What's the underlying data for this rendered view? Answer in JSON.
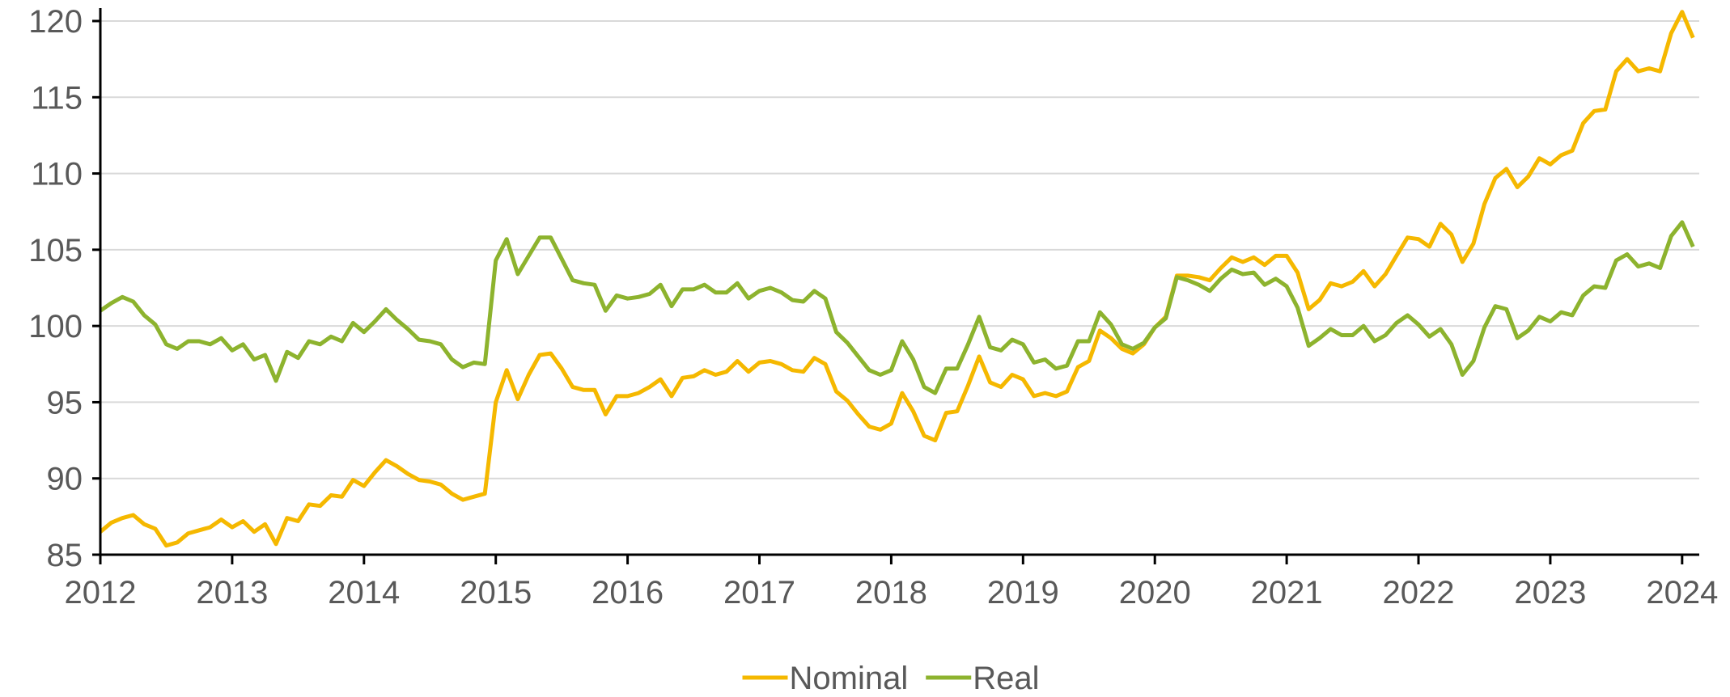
{
  "chart_data": {
    "type": "line",
    "x": [
      2012,
      2012.083,
      2012.167,
      2012.25,
      2012.333,
      2012.417,
      2012.5,
      2012.583,
      2012.667,
      2012.75,
      2012.833,
      2012.917,
      2013,
      2013.083,
      2013.167,
      2013.25,
      2013.333,
      2013.417,
      2013.5,
      2013.583,
      2013.667,
      2013.75,
      2013.833,
      2013.917,
      2014,
      2014.083,
      2014.167,
      2014.25,
      2014.333,
      2014.417,
      2014.5,
      2014.583,
      2014.667,
      2014.75,
      2014.833,
      2014.917,
      2015,
      2015.083,
      2015.167,
      2015.25,
      2015.333,
      2015.417,
      2015.5,
      2015.583,
      2015.667,
      2015.75,
      2015.833,
      2015.917,
      2016,
      2016.083,
      2016.167,
      2016.25,
      2016.333,
      2016.417,
      2016.5,
      2016.583,
      2016.667,
      2016.75,
      2016.833,
      2016.917,
      2017,
      2017.083,
      2017.167,
      2017.25,
      2017.333,
      2017.417,
      2017.5,
      2017.583,
      2017.667,
      2017.75,
      2017.833,
      2017.917,
      2018,
      2018.083,
      2018.167,
      2018.25,
      2018.333,
      2018.417,
      2018.5,
      2018.583,
      2018.667,
      2018.75,
      2018.833,
      2018.917,
      2019,
      2019.083,
      2019.167,
      2019.25,
      2019.333,
      2019.417,
      2019.5,
      2019.583,
      2019.667,
      2019.75,
      2019.833,
      2019.917,
      2020,
      2020.083,
      2020.167,
      2020.25,
      2020.333,
      2020.417,
      2020.5,
      2020.583,
      2020.667,
      2020.75,
      2020.833,
      2020.917,
      2021,
      2021.083,
      2021.167,
      2021.25,
      2021.333,
      2021.417,
      2021.5,
      2021.583,
      2021.667,
      2021.75,
      2021.833,
      2021.917,
      2022,
      2022.083,
      2022.167,
      2022.25,
      2022.333,
      2022.417,
      2022.5,
      2022.583,
      2022.667,
      2022.75,
      2022.833,
      2022.917,
      2023,
      2023.083,
      2023.167,
      2023.25,
      2023.333,
      2023.417,
      2023.5,
      2023.583,
      2023.667,
      2023.75,
      2023.833,
      2023.917,
      2024,
      2024.083
    ],
    "series": [
      {
        "name": "Nominal",
        "color": "#f5b800",
        "values": [
          86.5,
          87.1,
          87.4,
          87.6,
          87.0,
          86.7,
          85.6,
          85.8,
          86.4,
          86.6,
          86.8,
          87.3,
          86.8,
          87.2,
          86.5,
          87.0,
          85.7,
          87.4,
          87.2,
          88.3,
          88.2,
          88.9,
          88.8,
          89.9,
          89.5,
          90.4,
          91.2,
          90.8,
          90.3,
          89.9,
          89.8,
          89.6,
          89.0,
          88.6,
          88.8,
          89.0,
          95.0,
          97.1,
          95.2,
          96.8,
          98.1,
          98.2,
          97.2,
          96.0,
          95.8,
          95.8,
          94.2,
          95.4,
          95.4,
          95.6,
          96.0,
          96.5,
          95.4,
          96.6,
          96.7,
          97.1,
          96.8,
          97.0,
          97.7,
          97.0,
          97.6,
          97.7,
          97.5,
          97.1,
          97.0,
          97.9,
          97.5,
          95.7,
          95.1,
          94.2,
          93.4,
          93.2,
          93.6,
          95.6,
          94.4,
          92.8,
          92.5,
          94.3,
          94.4,
          96.1,
          98.0,
          96.3,
          96.0,
          96.8,
          96.5,
          95.4,
          95.6,
          95.4,
          95.7,
          97.3,
          97.7,
          99.7,
          99.2,
          98.5,
          98.2,
          98.8,
          99.9,
          100.6,
          103.3,
          103.3,
          103.2,
          103.0,
          103.8,
          104.5,
          104.2,
          104.5,
          104.0,
          104.6,
          104.6,
          103.5,
          101.1,
          101.7,
          102.8,
          102.6,
          102.9,
          103.6,
          102.6,
          103.4,
          104.6,
          105.8,
          105.7,
          105.2,
          106.7,
          106.0,
          104.2,
          105.4,
          108.0,
          109.7,
          110.3,
          109.1,
          109.8,
          111.0,
          110.6,
          111.2,
          111.5,
          113.3,
          114.1,
          114.2,
          116.7,
          117.5,
          116.7,
          116.9,
          116.7,
          119.2,
          120.6,
          118.9
        ]
      },
      {
        "name": "Real",
        "color": "#8db32e",
        "values": [
          101.0,
          101.5,
          101.9,
          101.6,
          100.7,
          100.1,
          98.8,
          98.5,
          99.0,
          99.0,
          98.8,
          99.2,
          98.4,
          98.8,
          97.8,
          98.1,
          96.4,
          98.3,
          97.9,
          99.0,
          98.8,
          99.3,
          99.0,
          100.2,
          99.6,
          100.3,
          101.1,
          100.4,
          99.8,
          99.1,
          99.0,
          98.8,
          97.8,
          97.3,
          97.6,
          97.5,
          104.3,
          105.7,
          103.4,
          104.6,
          105.8,
          105.8,
          104.4,
          103.0,
          102.8,
          102.7,
          101.0,
          102.0,
          101.8,
          101.9,
          102.1,
          102.7,
          101.3,
          102.4,
          102.4,
          102.7,
          102.2,
          102.2,
          102.8,
          101.8,
          102.3,
          102.5,
          102.2,
          101.7,
          101.6,
          102.3,
          101.8,
          99.6,
          98.9,
          98.0,
          97.1,
          96.8,
          97.1,
          99.0,
          97.8,
          96.0,
          95.6,
          97.2,
          97.2,
          98.8,
          100.6,
          98.6,
          98.4,
          99.1,
          98.8,
          97.6,
          97.8,
          97.2,
          97.4,
          99.0,
          99.0,
          100.9,
          100.1,
          98.8,
          98.5,
          98.9,
          99.9,
          100.5,
          103.2,
          103.0,
          102.7,
          102.3,
          103.1,
          103.7,
          103.4,
          103.5,
          102.7,
          103.1,
          102.6,
          101.2,
          98.7,
          99.2,
          99.8,
          99.4,
          99.4,
          100.0,
          99.0,
          99.4,
          100.2,
          100.7,
          100.1,
          99.3,
          99.8,
          98.8,
          96.8,
          97.7,
          99.9,
          101.3,
          101.1,
          99.2,
          99.7,
          100.6,
          100.3,
          100.9,
          100.7,
          102.0,
          102.6,
          102.5,
          104.3,
          104.7,
          103.9,
          104.1,
          103.8,
          105.9,
          106.8,
          105.2
        ]
      }
    ],
    "xlim": [
      2012,
      2024.13
    ],
    "xticks": [
      2012,
      2013,
      2014,
      2015,
      2016,
      2017,
      2018,
      2019,
      2020,
      2021,
      2022,
      2023,
      2024
    ],
    "ylim": [
      85,
      120
    ],
    "yticks": [
      85,
      90,
      95,
      100,
      105,
      110,
      115,
      120
    ],
    "grid": true,
    "legend": "bottom"
  }
}
